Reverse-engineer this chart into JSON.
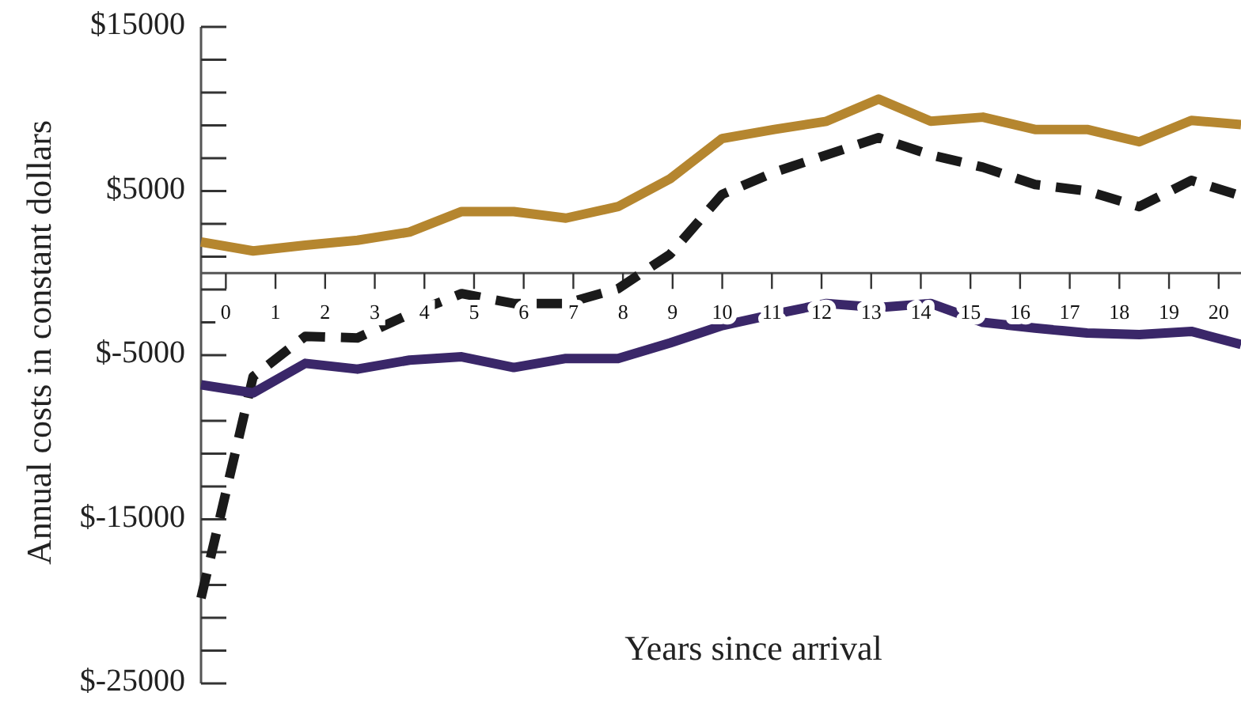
{
  "chart_data": {
    "type": "line",
    "xlabel": "Years since arrival",
    "ylabel": "Annual costs in constant dollars",
    "x": [
      -0.5,
      0.55,
      1.6,
      2.65,
      3.7,
      4.75,
      5.8,
      6.85,
      7.9,
      8.95,
      10,
      11.05,
      12.1,
      13.15,
      14.2,
      15.25,
      16.3,
      17.35,
      18.4,
      19.45,
      20.45
    ],
    "xlim": [
      -0.5,
      20.45
    ],
    "xticks": [
      0,
      1,
      2,
      3,
      4,
      5,
      6,
      7,
      8,
      9,
      10,
      11,
      12,
      13,
      14,
      15,
      16,
      17,
      18,
      19,
      20
    ],
    "ylim": [
      -25000,
      15000
    ],
    "yticks": [
      {
        "value": 15000,
        "label": "$15000"
      },
      {
        "value": 13000,
        "label": null
      },
      {
        "value": 11000,
        "label": null
      },
      {
        "value": 9000,
        "label": null
      },
      {
        "value": 7000,
        "label": null
      },
      {
        "value": 5000,
        "label": "$5000"
      },
      {
        "value": 3000,
        "label": null
      },
      {
        "value": 1000,
        "label": null
      },
      {
        "value": -1000,
        "label": null
      },
      {
        "value": -3000,
        "label": null
      },
      {
        "value": -5000,
        "label": "$-5000"
      },
      {
        "value": -7000,
        "label": null
      },
      {
        "value": -9000,
        "label": null
      },
      {
        "value": -11000,
        "label": null
      },
      {
        "value": -13000,
        "label": null
      },
      {
        "value": -15000,
        "label": "$-15000"
      },
      {
        "value": -17000,
        "label": null
      },
      {
        "value": -19000,
        "label": null
      },
      {
        "value": -21000,
        "label": null
      },
      {
        "value": -23000,
        "label": null
      },
      {
        "value": -25000,
        "label": "$-25000"
      }
    ],
    "grid": false,
    "marker": "none",
    "series": [
      {
        "color": "#b5862f",
        "line_style": "solid",
        "values": [
          1900,
          1350,
          1700,
          2000,
          2500,
          3750,
          3750,
          3350,
          4050,
          5750,
          8200,
          8750,
          9250,
          10600,
          9250,
          9500,
          8750,
          8750,
          8000,
          9300,
          9050
        ]
      },
      {
        "color": "#1a1a1a",
        "line_style": "dashed",
        "values": [
          -19800,
          -6300,
          -3850,
          -3950,
          -2500,
          -1250,
          -1850,
          -1850,
          -950,
          1150,
          4800,
          6150,
          7200,
          8250,
          7200,
          6450,
          5400,
          5000,
          4050,
          5650,
          4700
        ]
      },
      {
        "color": "#3a2769",
        "line_style": "solid",
        "values": [
          -6800,
          -7300,
          -5500,
          -5850,
          -5300,
          -5100,
          -5750,
          -5200,
          -5200,
          -4250,
          -3200,
          -2500,
          -1850,
          -2100,
          -1850,
          -3000,
          -3350,
          -3650,
          -3750,
          -3550,
          -4350
        ]
      }
    ]
  }
}
